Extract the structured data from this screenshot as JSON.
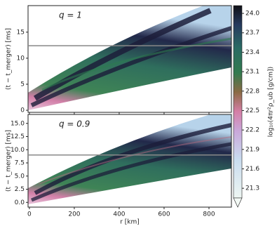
{
  "chart_data": [
    {
      "type": "heatmap",
      "title": "q = 1",
      "ylabel": "(t − t_merger) [ms]",
      "ylim": [
        -0.4,
        20.1
      ],
      "yticks": [
        0,
        5,
        10,
        15
      ],
      "hline": 12.4
    },
    {
      "type": "heatmap",
      "title": "q = 0.9",
      "ylabel": "(t − t_merger) [ms]",
      "xlabel": "r [km]",
      "xlim": [
        -6,
        900
      ],
      "xticks": [
        0,
        200,
        400,
        600,
        800
      ],
      "ylim": [
        -0.9,
        16.7
      ],
      "yticks": [
        {
          "value": 0,
          "label": "0.0"
        },
        2.5,
        {
          "value": 5,
          "label": "5.0"
        },
        7.5,
        {
          "value": 10,
          "label": "10.0"
        },
        12.5,
        {
          "value": 15,
          "label": "15.0"
        }
      ],
      "hline": 9.0
    },
    {
      "type": "colorbar",
      "label": "log₁₀(4πr²ρ_ub [g/cm])",
      "clim": [
        21.15,
        24.12
      ],
      "cticks": [
        {
          "value": 24,
          "label": "24.0"
        },
        23.7,
        23.4,
        23.1,
        22.8,
        22.5,
        22.2,
        21.9,
        21.6,
        21.3
      ]
    }
  ]
}
